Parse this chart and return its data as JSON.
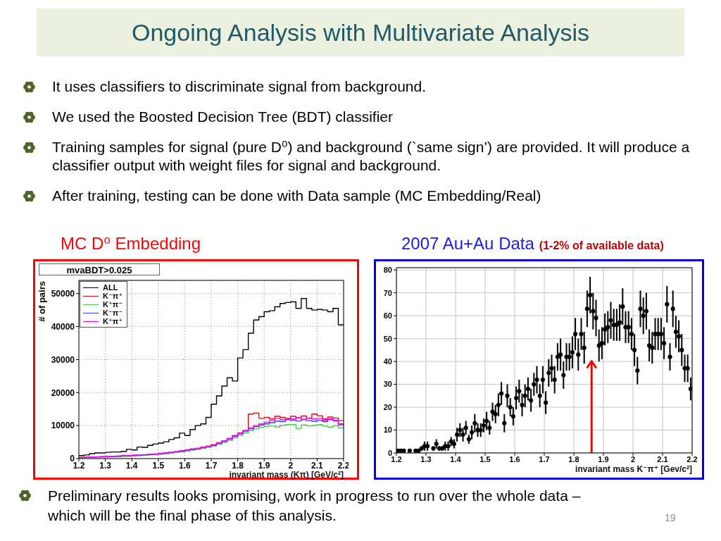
{
  "chart_data": [
    {
      "type": "other",
      "title": "Ongoing Analysis with Multivariate Analysis",
      "annotations": [
        "It uses classifiers to discriminate signal from background.",
        "We used the Boosted Decision Tree (BDT) classifier",
        "Training samples for signal (pure D⁰) and background (`same sign’) are provided. It will produce a classifier output with weight files for signal and background.",
        "After training, testing can be done with Data sample (MC Embedding/Real)"
      ]
    },
    {
      "type": "histogram",
      "title": "MC D⁰ Embedding",
      "annotations": [
        "mvaBDT>0.025"
      ],
      "xlabel": "invariant mass (Kπ) [GeV/c²]",
      "ylabel": "# of pairs",
      "bins": [
        1.2,
        1.22,
        1.24,
        1.26,
        1.28,
        1.3,
        1.32,
        1.34,
        1.36,
        1.38,
        1.4,
        1.42,
        1.44,
        1.46,
        1.48,
        1.5,
        1.52,
        1.54,
        1.56,
        1.58,
        1.6,
        1.62,
        1.64,
        1.66,
        1.68,
        1.7,
        1.72,
        1.74,
        1.76,
        1.78,
        1.8,
        1.82,
        1.84,
        1.86,
        1.88,
        1.9,
        1.92,
        1.94,
        1.96,
        1.98,
        2,
        2.02,
        2.04,
        2.06,
        2.08,
        2.1,
        2.12,
        2.14,
        2.16,
        2.18,
        2.2
      ],
      "series": [
        {
          "name": "ALL",
          "color": "#000000",
          "values": [
            900,
            1100,
            1500,
            1700,
            1700,
            1900,
            2000,
            2000,
            2200,
            2800,
            2600,
            3500,
            3400,
            4000,
            4400,
            4700,
            5100,
            5800,
            6300,
            7700,
            7000,
            8800,
            10000,
            10500,
            12500,
            16500,
            19000,
            22000,
            24500,
            23500,
            30500,
            33000,
            38000,
            42000,
            43000,
            44500,
            44800,
            46000,
            47000,
            47300,
            47500,
            45500,
            48500,
            45500,
            45000,
            45200,
            45000,
            44500,
            45500,
            40500
          ]
        },
        {
          "name": "K⁻π⁺",
          "color": "#ff0000",
          "values": [
            400,
            400,
            500,
            500,
            600,
            600,
            700,
            700,
            900,
            800,
            1000,
            1000,
            1100,
            1300,
            1300,
            1500,
            1700,
            1900,
            2100,
            2300,
            2600,
            2900,
            3100,
            3400,
            3800,
            4200,
            4800,
            5400,
            6100,
            7000,
            7800,
            8500,
            13500,
            13800,
            12200,
            12500,
            12000,
            12800,
            12500,
            12200,
            12800,
            12300,
            12900,
            12200,
            13500,
            13000,
            12000,
            12600,
            12300,
            11500
          ]
        },
        {
          "name": "K⁺π⁻",
          "color": "#4ccc4c",
          "values": [
            300,
            300,
            400,
            400,
            500,
            500,
            600,
            600,
            700,
            700,
            800,
            900,
            1000,
            1100,
            1200,
            1300,
            1500,
            1700,
            1900,
            2100,
            2300,
            2600,
            2800,
            3100,
            3400,
            3800,
            4300,
            4900,
            5500,
            6300,
            7100,
            7800,
            8500,
            9000,
            9500,
            9700,
            9900,
            9600,
            10100,
            10300,
            10300,
            9100,
            10200,
            9900,
            10100,
            10300,
            9900,
            9500,
            10000,
            9300
          ]
        },
        {
          "name": "K⁻π⁻",
          "color": "#3c3cff",
          "values": [
            300,
            400,
            400,
            500,
            500,
            600,
            600,
            700,
            800,
            800,
            900,
            1000,
            1100,
            1200,
            1300,
            1500,
            1600,
            1800,
            2000,
            2200,
            2500,
            2700,
            3000,
            3300,
            3600,
            4000,
            4600,
            5200,
            5900,
            6700,
            7500,
            8300,
            9000,
            9700,
            10200,
            10500,
            10900,
            11300,
            11200,
            11800,
            11600,
            11400,
            11900,
            11500,
            11300,
            11600,
            11200,
            11800,
            11400,
            10500
          ]
        },
        {
          "name": "K⁺π⁺",
          "color": "#ff00ff",
          "values": [
            300,
            400,
            500,
            500,
            600,
            600,
            700,
            800,
            800,
            900,
            1000,
            1100,
            1200,
            1300,
            1400,
            1600,
            1700,
            1900,
            2100,
            2400,
            2600,
            2900,
            3100,
            3400,
            3700,
            4100,
            4700,
            5400,
            6100,
            6900,
            7700,
            8500,
            9300,
            10000,
            10500,
            11000,
            11500,
            12200,
            11800,
            12200,
            12000,
            12400,
            11800,
            12300,
            12000,
            12200,
            11600,
            12000,
            11600,
            10200
          ]
        }
      ],
      "xlim": [
        1.2,
        2.2
      ],
      "xticks": [
        1.2,
        1.3,
        1.4,
        1.5,
        1.6,
        1.7,
        1.8,
        1.9,
        2,
        2.1,
        2.2
      ],
      "ylim": [
        0,
        54000
      ],
      "yticks": [
        0,
        10000,
        20000,
        30000,
        40000,
        50000
      ],
      "grid": true,
      "legend": "top left"
    },
    {
      "type": "scatter",
      "title": "2007 Au+Au Data",
      "subtitle": "(1-2% of available data)",
      "xlabel": "invariant mass K⁻π⁺ [Gev/c²]",
      "color": "#000000",
      "marker": "circle",
      "x": [
        1.205,
        1.215,
        1.225,
        1.235,
        1.245,
        1.255,
        1.265,
        1.275,
        1.285,
        1.295,
        1.305,
        1.315,
        1.325,
        1.335,
        1.345,
        1.355,
        1.365,
        1.375,
        1.385,
        1.395,
        1.405,
        1.415,
        1.425,
        1.435,
        1.445,
        1.455,
        1.465,
        1.475,
        1.485,
        1.495,
        1.505,
        1.515,
        1.525,
        1.535,
        1.545,
        1.555,
        1.565,
        1.575,
        1.585,
        1.595,
        1.605,
        1.615,
        1.625,
        1.635,
        1.645,
        1.655,
        1.665,
        1.675,
        1.685,
        1.695,
        1.705,
        1.715,
        1.725,
        1.735,
        1.745,
        1.755,
        1.765,
        1.775,
        1.785,
        1.795,
        1.805,
        1.815,
        1.825,
        1.835,
        1.845,
        1.855,
        1.865,
        1.875,
        1.885,
        1.895,
        1.905,
        1.915,
        1.925,
        1.935,
        1.945,
        1.955,
        1.965,
        1.975,
        1.985,
        1.995,
        2.005,
        2.015,
        2.025,
        2.035,
        2.045,
        2.055,
        2.065,
        2.075,
        2.085,
        2.095,
        2.105,
        2.115,
        2.125,
        2.135,
        2.145,
        2.155,
        2.165,
        2.175,
        2.185,
        2.195
      ],
      "values": [
        1,
        1,
        1,
        null,
        1,
        null,
        1,
        1,
        2,
        3,
        3,
        null,
        2,
        4,
        2,
        2,
        3,
        3,
        5,
        4,
        8,
        10,
        8,
        11,
        6,
        9,
        13,
        10,
        10,
        12,
        14,
        11,
        18,
        17,
        21,
        26,
        13,
        25,
        20,
        16,
        24,
        27,
        21,
        25,
        28,
        23,
        30,
        32,
        25,
        32,
        22,
        35,
        37,
        32,
        42,
        43,
        34,
        42,
        42,
        44,
        52,
        43,
        52,
        46,
        63,
        69,
        62,
        59,
        47,
        48,
        54,
        55,
        58,
        56,
        56,
        57,
        64,
        55,
        55,
        52,
        45,
        36,
        63,
        60,
        62,
        47,
        46,
        52,
        52,
        52,
        48,
        65,
        42,
        63,
        53,
        51,
        45,
        37,
        37,
        28
      ],
      "errors": [
        null,
        null,
        null,
        null,
        null,
        null,
        null,
        null,
        1,
        2,
        2,
        null,
        1,
        2,
        1,
        1,
        2,
        2,
        2,
        2,
        3,
        3,
        3,
        3,
        2,
        3,
        4,
        3,
        3,
        3,
        4,
        3,
        4,
        4,
        5,
        5,
        4,
        5,
        4,
        4,
        5,
        5,
        5,
        5,
        5,
        5,
        5,
        6,
        5,
        6,
        5,
        6,
        6,
        6,
        6,
        7,
        6,
        6,
        6,
        7,
        7,
        7,
        7,
        7,
        8,
        8,
        8,
        8,
        7,
        7,
        7,
        7,
        8,
        7,
        7,
        8,
        8,
        7,
        7,
        7,
        7,
        6,
        8,
        8,
        8,
        7,
        7,
        7,
        7,
        7,
        7,
        8,
        6,
        8,
        7,
        7,
        7,
        6,
        6,
        5
      ],
      "xlim": [
        1.2,
        2.2
      ],
      "xticks": [
        1.2,
        1.3,
        1.4,
        1.5,
        1.6,
        1.7,
        1.8,
        1.9,
        2,
        2.1,
        2.2
      ],
      "ylim": [
        0,
        81
      ],
      "yticks": [
        0,
        10,
        20,
        30,
        40,
        50,
        60,
        70,
        80
      ],
      "grid": true,
      "ref_lines": [
        {
          "axis": "x",
          "value": 1.86,
          "color": "#ff0000"
        }
      ]
    },
    {
      "type": "other",
      "annotations": [
        "Preliminary results looks promising, work in progress to run over the whole data – which will be the final phase of this analysis.",
        "19"
      ]
    }
  ]
}
